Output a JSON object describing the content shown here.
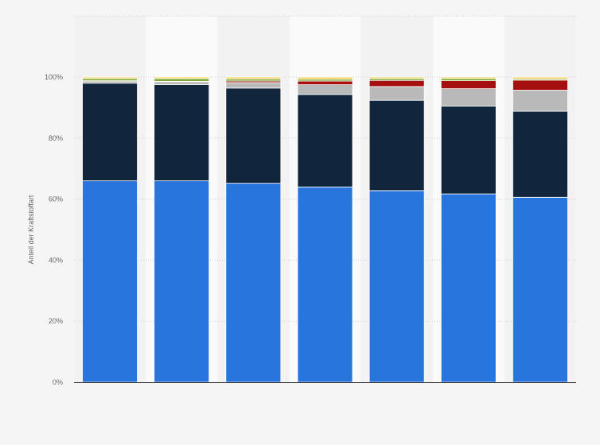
{
  "chart_data": {
    "type": "bar",
    "stacked": true,
    "categories": [
      "",
      "",
      "",
      "",
      "",
      "",
      ""
    ],
    "series": [
      {
        "color": "#2876dd",
        "values": [
          66.0,
          66.0,
          65.2,
          64.0,
          62.8,
          61.7,
          60.6
        ]
      },
      {
        "color": "#11263c",
        "values": [
          32.0,
          31.5,
          31.2,
          30.3,
          29.6,
          28.8,
          28.2
        ]
      },
      {
        "color": "#b9b9b9",
        "values": [
          0.7,
          1.0,
          1.8,
          3.2,
          4.5,
          5.7,
          6.9
        ]
      },
      {
        "color": "#a50f0f",
        "values": [
          0.1,
          0.1,
          0.5,
          1.2,
          2.0,
          2.6,
          3.3
        ]
      },
      {
        "color": "#7ea733",
        "values": [
          0.7,
          0.9,
          0.7,
          0.6,
          0.6,
          0.7,
          0.4
        ]
      },
      {
        "color": "#f2d25f",
        "values": [
          0.5,
          0.5,
          0.6,
          0.7,
          0.5,
          0.5,
          0.6
        ]
      }
    ],
    "ylabel": "Anteil der Kraftstoffart",
    "ylim": [
      0,
      120
    ],
    "yticks": [
      0,
      20,
      40,
      60,
      80,
      100
    ],
    "ytick_labels": [
      "0%",
      "20%",
      "40%",
      "60%",
      "80%",
      "100%"
    ],
    "grid": true,
    "legend": "none"
  }
}
